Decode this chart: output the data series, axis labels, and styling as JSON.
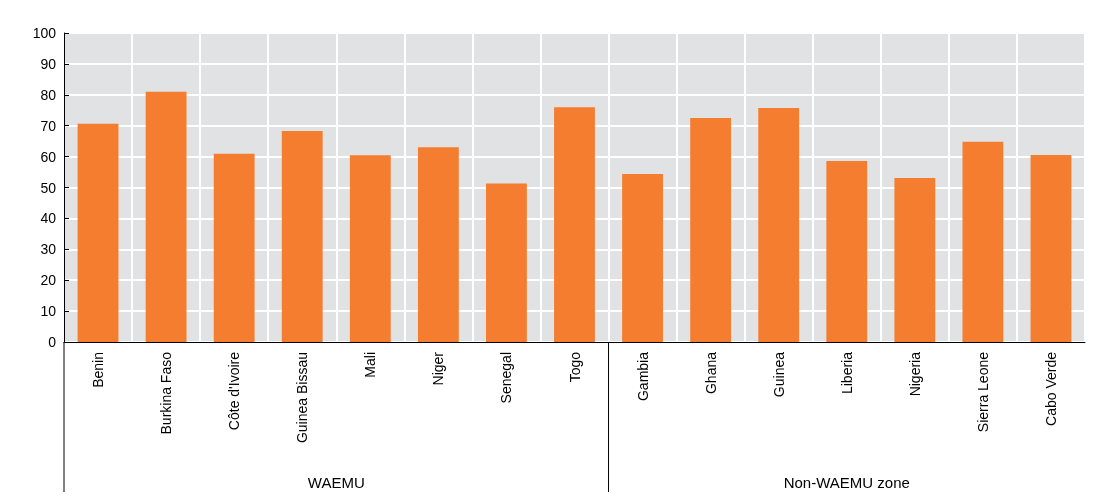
{
  "chart_data": {
    "type": "bar",
    "categories": [
      "Benin",
      "Burkina Faso",
      "Côte d'Ivoire",
      "Guinea Bissau",
      "Mali",
      "Niger",
      "Senegal",
      "Togo",
      "Gambia",
      "Ghana",
      "Guinea",
      "Liberia",
      "Nigeria",
      "Sierra Leone",
      "Cabo Verde"
    ],
    "values": [
      70.6,
      81,
      60.9,
      68.3,
      60.4,
      63,
      51.3,
      76,
      54.4,
      72.5,
      75.7,
      58.6,
      53.1,
      64.8,
      60.5
    ],
    "color": "#f47d30",
    "ylim": [
      0,
      100
    ],
    "yticks": [
      0,
      10,
      20,
      30,
      40,
      50,
      60,
      70,
      80,
      90,
      100
    ],
    "grid": true,
    "annotations": [
      "WAEMU",
      "Non-WAEMU zone"
    ]
  }
}
